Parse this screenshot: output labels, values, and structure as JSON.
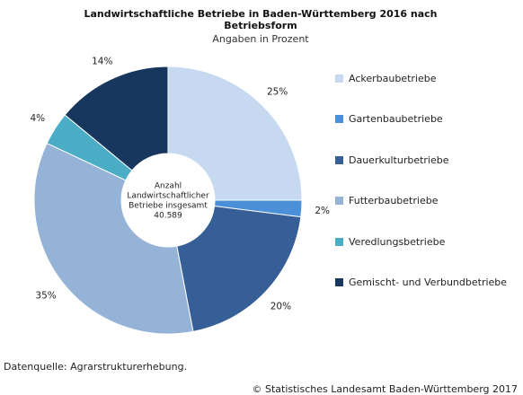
{
  "title": "Landwirtschaftliche Betriebe in Baden-Württemberg 2016 nach Betriebsform",
  "subtitle": "Angaben in Prozent",
  "source": "Datenquelle: Agrarstrukturerhebung.",
  "copyright": "© Statistisches Landesamt Baden-Württemberg 2017",
  "chart_data": {
    "type": "pie",
    "title": "Landwirtschaftliche Betriebe in Baden-Württemberg 2016 nach Betriebsform",
    "subtitle": "Angaben in Prozent",
    "donut": true,
    "legend_position": "right",
    "center_text": [
      "Anzahl",
      "Landwirtschaftlicher",
      "Betriebe insgesamt",
      "40.589"
    ],
    "slices": [
      {
        "label": "Ackerbaubetriebe",
        "value": 25,
        "value_label": "25%",
        "color": "#c6d9f0"
      },
      {
        "label": "Gartenbaubetriebe",
        "value": 2,
        "value_label": "2%",
        "color": "#4a8fd8"
      },
      {
        "label": "Dauerkulturbetriebe",
        "value": 20,
        "value_label": "20%",
        "color": "#355f96"
      },
      {
        "label": "Futterbaubetriebe",
        "value": 35,
        "value_label": "35%",
        "color": "#95b3d7"
      },
      {
        "label": "Veredlungsbetriebe",
        "value": 4,
        "value_label": "4%",
        "color": "#4bacc6"
      },
      {
        "label": "Gemischt- und Verbundbetriebe",
        "value": 14,
        "value_label": "14%",
        "color": "#17375e"
      }
    ]
  }
}
